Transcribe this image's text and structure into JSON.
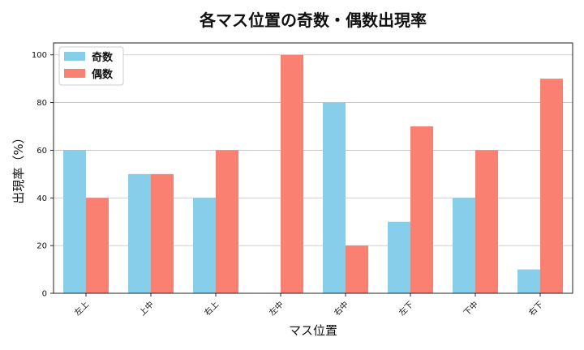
{
  "chart_data": {
    "type": "bar",
    "title": "各マス位置の奇数・偶数出現率",
    "xlabel": "マス位置",
    "ylabel": "出現率（%）",
    "categories": [
      "左上",
      "上中",
      "右上",
      "左中",
      "右中",
      "左下",
      "下中",
      "右下"
    ],
    "series": [
      {
        "name": "奇数",
        "color": "#87ceeb",
        "values": [
          60,
          50,
          40,
          0,
          80,
          30,
          40,
          10
        ]
      },
      {
        "name": "偶数",
        "color": "#fa8072",
        "values": [
          40,
          50,
          60,
          100,
          20,
          70,
          60,
          90
        ]
      }
    ],
    "yticks": [
      0,
      20,
      40,
      60,
      80,
      100
    ],
    "ylim": [
      0,
      105
    ],
    "grid": "y",
    "legend": "top-left"
  }
}
